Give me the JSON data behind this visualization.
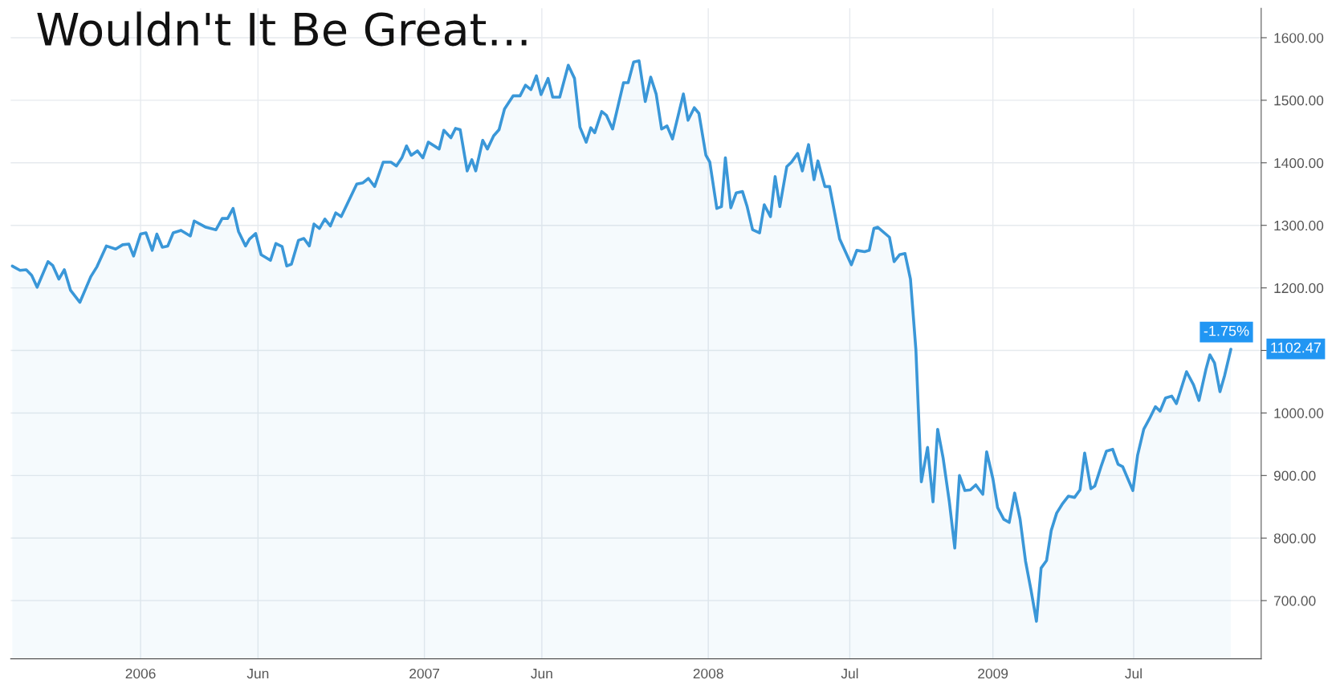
{
  "chart_data": {
    "type": "area",
    "title": "Wouldn't It Be Great…",
    "x": [
      "2005-07-20",
      "2005-07-30",
      "2005-08-07",
      "2005-08-14",
      "2005-08-21",
      "2005-09-04",
      "2005-09-10",
      "2005-09-18",
      "2005-09-25",
      "2005-10-03",
      "2005-10-15",
      "2005-10-29",
      "2005-11-06",
      "2005-11-18",
      "2005-11-30",
      "2005-12-09",
      "2005-12-17",
      "2005-12-23",
      "2006-01-01",
      "2006-01-08",
      "2006-01-16",
      "2006-01-22",
      "2006-01-29",
      "2006-02-05",
      "2006-02-12",
      "2006-02-22",
      "2006-03-06",
      "2006-03-11",
      "2006-03-26",
      "2006-04-08",
      "2006-04-16",
      "2006-04-23",
      "2006-04-30",
      "2006-05-07",
      "2006-05-16",
      "2006-05-21",
      "2006-05-29",
      "2006-06-05",
      "2006-06-17",
      "2006-06-24",
      "2006-07-02",
      "2006-07-08",
      "2006-07-14",
      "2006-07-23",
      "2006-07-30",
      "2006-08-06",
      "2006-08-12",
      "2006-08-19",
      "2006-08-26",
      "2006-09-02",
      "2006-09-09",
      "2006-09-16",
      "2006-10-06",
      "2006-10-14",
      "2006-10-21",
      "2006-10-29",
      "2006-11-09",
      "2006-11-19",
      "2006-11-26",
      "2006-12-03",
      "2006-12-09",
      "2006-12-15",
      "2006-12-23",
      "2006-12-30",
      "2007-01-06",
      "2007-01-20",
      "2007-01-26",
      "2007-02-04",
      "2007-02-10",
      "2007-02-16",
      "2007-02-25",
      "2007-03-03",
      "2007-03-08",
      "2007-03-17",
      "2007-03-23",
      "2007-03-31",
      "2007-04-07",
      "2007-04-14",
      "2007-04-25",
      "2007-05-04",
      "2007-05-11",
      "2007-05-18",
      "2007-05-25",
      "2007-05-31",
      "2007-06-09",
      "2007-06-15",
      "2007-06-24",
      "2007-07-05",
      "2007-07-13",
      "2007-07-20",
      "2007-07-28",
      "2007-08-03",
      "2007-08-08",
      "2007-08-17",
      "2007-08-23",
      "2007-08-31",
      "2007-09-14",
      "2007-09-20",
      "2007-09-27",
      "2007-10-04",
      "2007-10-12",
      "2007-10-19",
      "2007-10-26",
      "2007-11-02",
      "2007-11-09",
      "2007-11-16",
      "2007-11-30",
      "2007-12-06",
      "2007-12-14",
      "2007-12-20",
      "2007-12-29",
      "2008-01-03",
      "2008-01-12",
      "2008-01-18",
      "2008-01-23",
      "2008-01-30",
      "2008-02-06",
      "2008-02-14",
      "2008-02-20",
      "2008-02-27",
      "2008-03-07",
      "2008-03-13",
      "2008-03-21",
      "2008-03-27",
      "2008-04-02",
      "2008-04-11",
      "2008-04-17",
      "2008-04-25",
      "2008-05-01",
      "2008-05-09",
      "2008-05-16",
      "2008-05-21",
      "2008-05-30",
      "2008-06-05",
      "2008-06-18",
      "2008-07-03",
      "2008-07-10",
      "2008-07-20",
      "2008-07-26",
      "2008-08-01",
      "2008-08-06",
      "2008-08-21",
      "2008-08-27",
      "2008-09-03",
      "2008-09-10",
      "2008-09-17",
      "2008-09-24",
      "2008-10-01",
      "2008-10-09",
      "2008-10-16",
      "2008-10-22",
      "2008-10-29",
      "2008-11-06",
      "2008-11-13",
      "2008-11-19",
      "2008-11-26",
      "2008-12-03",
      "2008-12-10",
      "2008-12-19",
      "2008-12-24",
      "2009-01-01",
      "2009-01-07",
      "2009-01-15",
      "2009-01-22",
      "2009-01-29",
      "2009-02-05",
      "2009-02-12",
      "2009-02-19",
      "2009-02-26",
      "2009-03-04",
      "2009-03-11",
      "2009-03-17",
      "2009-03-24",
      "2009-03-31",
      "2009-04-08",
      "2009-04-16",
      "2009-04-23",
      "2009-04-29",
      "2009-05-07",
      "2009-05-12",
      "2009-05-20",
      "2009-05-27",
      "2009-06-04",
      "2009-06-11",
      "2009-06-17",
      "2009-06-30",
      "2009-07-06",
      "2009-07-14",
      "2009-07-21",
      "2009-07-29",
      "2009-08-04",
      "2009-08-11",
      "2009-08-19",
      "2009-08-25",
      "2009-09-07",
      "2009-09-16",
      "2009-09-23",
      "2009-10-02",
      "2009-10-07",
      "2009-10-13",
      "2009-10-20",
      "2009-10-26",
      "2009-11-03"
    ],
    "series": [
      {
        "color": "#3a97d8",
        "values": [
          1235,
          1228,
          1229,
          1220,
          1201,
          1242,
          1236,
          1214,
          1229,
          1196,
          1177,
          1218,
          1234,
          1267,
          1262,
          1269,
          1270,
          1251,
          1286,
          1288,
          1260,
          1286,
          1265,
          1267,
          1288,
          1292,
          1283,
          1307,
          1297,
          1293,
          1311,
          1311,
          1327,
          1290,
          1267,
          1278,
          1287,
          1253,
          1244,
          1271,
          1266,
          1235,
          1238,
          1276,
          1279,
          1267,
          1302,
          1295,
          1310,
          1299,
          1320,
          1314,
          1366,
          1368,
          1375,
          1362,
          1401,
          1401,
          1395,
          1408,
          1427,
          1412,
          1419,
          1408,
          1433,
          1422,
          1452,
          1440,
          1455,
          1453,
          1387,
          1405,
          1387,
          1436,
          1422,
          1443,
          1453,
          1486,
          1507,
          1507,
          1524,
          1517,
          1539,
          1509,
          1535,
          1505,
          1505,
          1556,
          1535,
          1457,
          1433,
          1456,
          1448,
          1482,
          1476,
          1454,
          1528,
          1528,
          1561,
          1563,
          1498,
          1537,
          1510,
          1454,
          1459,
          1438,
          1510,
          1468,
          1488,
          1479,
          1412,
          1401,
          1327,
          1330,
          1408,
          1328,
          1352,
          1354,
          1330,
          1293,
          1288,
          1333,
          1314,
          1378,
          1330,
          1394,
          1401,
          1415,
          1387,
          1429,
          1373,
          1403,
          1362,
          1362,
          1278,
          1237,
          1260,
          1258,
          1260,
          1295,
          1297,
          1281,
          1242,
          1253,
          1255,
          1214,
          1101,
          890,
          945,
          858,
          974,
          928,
          858,
          784,
          900,
          876,
          877,
          885,
          870,
          938,
          895,
          849,
          830,
          825,
          872,
          830,
          763,
          717,
          667,
          752,
          764,
          812,
          840,
          854,
          867,
          865,
          877,
          936,
          879,
          883,
          914,
          939,
          942,
          918,
          914,
          876,
          932,
          974,
          990,
          1010,
          1003,
          1024,
          1027,
          1015,
          1066,
          1045,
          1020,
          1070,
          1093,
          1080,
          1034,
          1060,
          1102
        ]
      }
    ],
    "xlim": [
      "2005-07-18",
      "2009-12-12"
    ],
    "xticks": [
      {
        "value": "2006-01-01",
        "label": "2006"
      },
      {
        "value": "2006-06-01",
        "label": "Jun"
      },
      {
        "value": "2007-01-01",
        "label": "2007"
      },
      {
        "value": "2007-06-01",
        "label": "Jun"
      },
      {
        "value": "2008-01-01",
        "label": "2008"
      },
      {
        "value": "2008-07-01",
        "label": "Jul"
      },
      {
        "value": "2009-01-01",
        "label": "2009"
      },
      {
        "value": "2009-07-01",
        "label": "Jul"
      }
    ],
    "ylim": [
      607,
      1647
    ],
    "yticks": [
      {
        "value": 700,
        "label": "700.00"
      },
      {
        "value": 800,
        "label": "800.00"
      },
      {
        "value": 900,
        "label": "900.00"
      },
      {
        "value": 1000,
        "label": "1000.00"
      },
      {
        "value": 1100,
        "label": null
      },
      {
        "value": 1200,
        "label": "1200.00"
      },
      {
        "value": 1300,
        "label": "1300.00"
      },
      {
        "value": 1400,
        "label": "1400.00"
      },
      {
        "value": 1500,
        "label": "1500.00"
      },
      {
        "value": 1600,
        "label": "1600.00"
      }
    ],
    "grid": true,
    "annotations": [
      {
        "text": "-1.75%",
        "x": "2009-11-03",
        "y": 1102.47
      },
      {
        "text": "1102.47",
        "x": "2009-11-03",
        "y": 1102.47
      }
    ]
  }
}
